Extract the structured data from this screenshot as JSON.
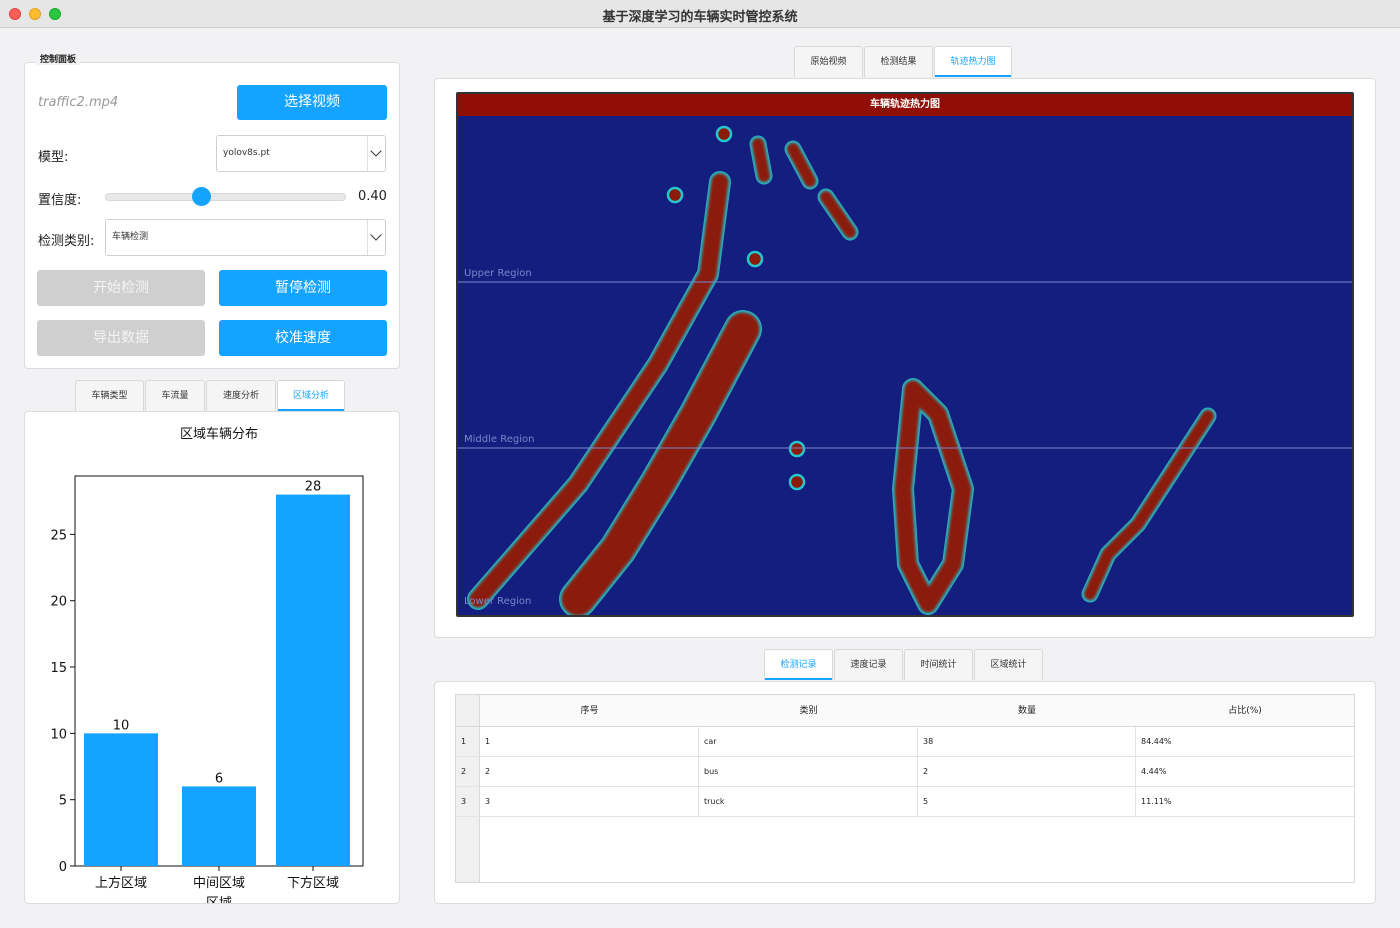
{
  "window": {
    "title": "基于深度学习的车辆实时管控系统"
  },
  "control_panel": {
    "group_title": "控制面板",
    "file_name": "traffic2.mp4",
    "select_video_label": "选择视频",
    "model_label": "模型:",
    "model_value": "yolov8s.pt",
    "confidence_label": "置信度:",
    "confidence_value": "0.40",
    "confidence_fraction": 0.4,
    "category_label": "检测类别:",
    "category_value": "车辆检测",
    "start_label": "开始检测",
    "pause_label": "暂停检测",
    "export_label": "导出数据",
    "calibrate_label": "校准速度"
  },
  "chart_tabs": [
    "车辆类型",
    "车流量",
    "速度分析",
    "区域分析"
  ],
  "chart_tab_active": 3,
  "chart_data": {
    "type": "bar",
    "title": "区域车辆分布",
    "categories": [
      "上方区域",
      "中间区域",
      "下方区域"
    ],
    "category_lines": [
      [
        "上方区域"
      ],
      [
        "中间区域",
        "区域"
      ],
      [
        "下方区域"
      ]
    ],
    "values": [
      10,
      6,
      28
    ],
    "data_labels": [
      "10",
      "6",
      "28"
    ],
    "yticks": [
      "0",
      "5",
      "10",
      "15",
      "20",
      "25"
    ],
    "ylim": [
      0,
      29.4
    ],
    "bar_color": "#14a3ff",
    "xlabel": "",
    "ylabel": ""
  },
  "view_tabs": [
    "原始视频",
    "检测结果",
    "轨迹热力图"
  ],
  "view_tab_active": 2,
  "heatmap": {
    "title": "车辆轨迹热力图",
    "regions": [
      "Upper Region",
      "Middle Region",
      "Lower Region"
    ]
  },
  "table_tabs": [
    "检测记录",
    "速度记录",
    "时间统计",
    "区域统计"
  ],
  "table_tab_active": 0,
  "table": {
    "headers": [
      "序号",
      "类别",
      "数量",
      "占比(%)"
    ],
    "rows": [
      {
        "num": "1",
        "cells": [
          "1",
          "car",
          "38",
          "84.44%"
        ]
      },
      {
        "num": "2",
        "cells": [
          "2",
          "bus",
          "2",
          "4.44%"
        ]
      },
      {
        "num": "3",
        "cells": [
          "3",
          "truck",
          "5",
          "11.11%"
        ]
      }
    ]
  },
  "colors": {
    "accent": "#14a3ff",
    "heat_bg": "#141e7e",
    "heat_hot": "#8b1c0a",
    "heat_header": "#910e06"
  }
}
